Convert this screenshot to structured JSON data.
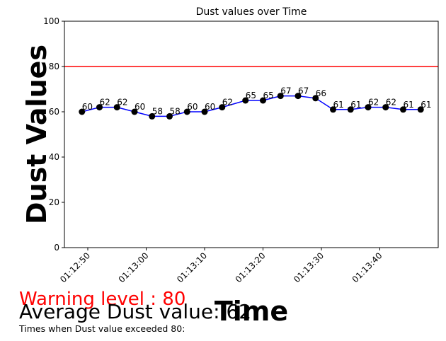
{
  "chart_data": {
    "type": "line",
    "title": "Dust values over Time",
    "xlabel": "Time",
    "ylabel": "Dust Values",
    "ylim": [
      0,
      100
    ],
    "yticks": [
      0,
      20,
      40,
      60,
      80,
      100
    ],
    "xlim": [
      "01:12:46",
      "01:13:50"
    ],
    "xticks": [
      "01:12:50",
      "01:13:00",
      "01:13:10",
      "01:13:20",
      "01:13:30",
      "01:13:40"
    ],
    "x": [
      "01:12:49",
      "01:12:52",
      "01:12:55",
      "01:12:58",
      "01:13:01",
      "01:13:04",
      "01:13:07",
      "01:13:10",
      "01:13:13",
      "01:13:17",
      "01:13:20",
      "01:13:23",
      "01:13:26",
      "01:13:29",
      "01:13:32",
      "01:13:35",
      "01:13:38",
      "01:13:41",
      "01:13:44",
      "01:13:47"
    ],
    "values": [
      60,
      62,
      62,
      60,
      58,
      58,
      60,
      60,
      62,
      65,
      65,
      67,
      67,
      66,
      61,
      61,
      62,
      62,
      61,
      61
    ],
    "threshold": 80,
    "line_color": "#0000ff",
    "marker_color": "#000000",
    "threshold_color": "#ff0000",
    "grid": false
  },
  "footer": {
    "warning_text": "Warning level : 80",
    "average_text": "Average Dust value: 62",
    "exceeded_text": "Times when Dust value exceeded 80:"
  }
}
